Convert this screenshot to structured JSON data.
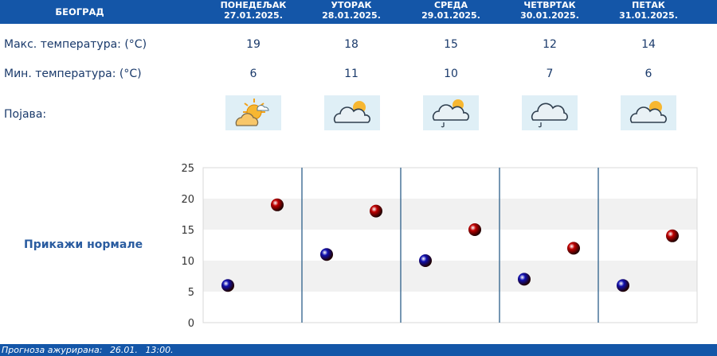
{
  "header": {
    "city": "БЕОГРАД",
    "days": [
      {
        "name": "ПОНЕДЕЉАК",
        "date": "27.01.2025."
      },
      {
        "name": "УТОРАК",
        "date": "28.01.2025."
      },
      {
        "name": "СРЕДА",
        "date": "29.01.2025."
      },
      {
        "name": "ЧЕТВРТАК",
        "date": "30.01.2025."
      },
      {
        "name": "ПЕТАК",
        "date": "31.01.2025."
      }
    ]
  },
  "rows": {
    "max_label": "Макс. температура: (°C)",
    "min_label": "Мин. температура: (°C)",
    "phenomenon_label": "Појава:",
    "max": [
      "19",
      "18",
      "15",
      "12",
      "14"
    ],
    "min": [
      "6",
      "11",
      "10",
      "7",
      "6"
    ],
    "icons": [
      "sun-cloud-icon",
      "cloud-sun-icon",
      "cloud-sun-rain-icon",
      "cloud-rain-icon",
      "cloud-sun-icon"
    ]
  },
  "normals_link": "Прикажи нормале",
  "footer": {
    "label": "Прогноза ажурирана:",
    "date": "26.01.",
    "time": "13:00."
  },
  "colors": {
    "header_bg": "#1456a8",
    "max_dot": "#c00000",
    "min_dot": "#1010b0",
    "text": "#1a3a6b"
  },
  "chart_data": {
    "type": "scatter",
    "yticks": [
      "0",
      "5",
      "10",
      "15",
      "20",
      "25"
    ],
    "ylim": [
      0,
      25
    ],
    "categories": [
      "27.01.2025.",
      "28.01.2025.",
      "29.01.2025.",
      "30.01.2025.",
      "31.01.2025."
    ],
    "series": [
      {
        "values": [
          6,
          11,
          10,
          7,
          6
        ],
        "color": "#1010b0"
      },
      {
        "values": [
          19,
          18,
          15,
          12,
          14
        ],
        "color": "#c00000"
      }
    ]
  }
}
